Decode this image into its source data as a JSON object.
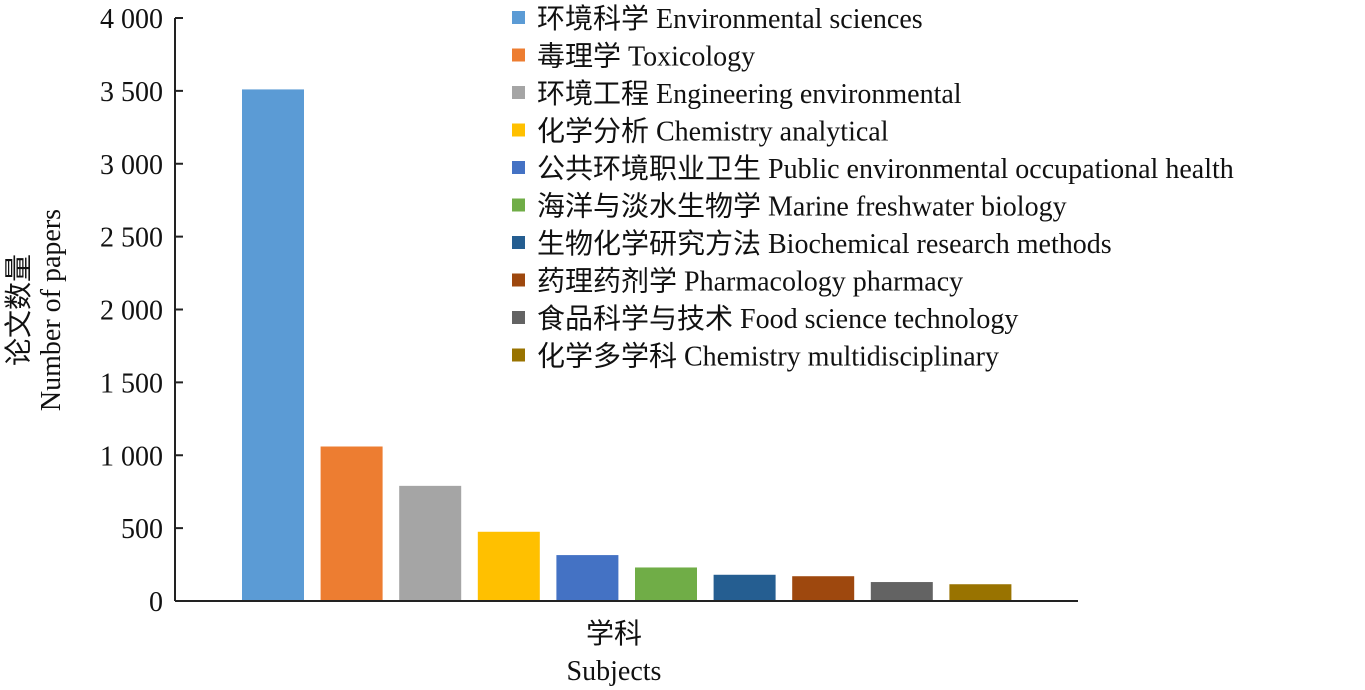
{
  "chart_data": {
    "type": "bar",
    "title": "",
    "ylabel": "论文数量",
    "ylabel_en": "Number of papers",
    "xlabel": "学科",
    "xlabel_en": "Subjects",
    "ylim": [
      0,
      4000
    ],
    "yticks": [
      0,
      500,
      1000,
      1500,
      2000,
      2500,
      3000,
      3500,
      4000
    ],
    "ytick_labels": [
      "0",
      "500",
      "1 000",
      "1 500",
      "2 000",
      "2 500",
      "3 000",
      "3 500",
      "4 000"
    ],
    "grid": false,
    "legend_position": "top-right",
    "series": [
      {
        "name": "环境科学 Environmental sciences",
        "value": 3510,
        "color": "#5b9bd5"
      },
      {
        "name": "毒理学 Toxicology",
        "value": 1060,
        "color": "#ed7d31"
      },
      {
        "name": "环境工程 Engineering environmental",
        "value": 790,
        "color": "#a5a5a5"
      },
      {
        "name": "化学分析 Chemistry analytical",
        "value": 475,
        "color": "#ffc000"
      },
      {
        "name": "公共环境职业卫生 Public environmental occupational health",
        "value": 315,
        "color": "#4472c4"
      },
      {
        "name": "海洋与淡水生物学 Marine freshwater biology",
        "value": 230,
        "color": "#70ad47"
      },
      {
        "name": "生物化学研究方法 Biochemical research methods",
        "value": 180,
        "color": "#255e91"
      },
      {
        "name": "药理药剂学 Pharmacology pharmacy",
        "value": 170,
        "color": "#9e480e"
      },
      {
        "name": "食品科学与技术 Food science technology",
        "value": 130,
        "color": "#636363"
      },
      {
        "name": "化学多学科 Chemistry multidisciplinary",
        "value": 115,
        "color": "#997300"
      }
    ]
  }
}
